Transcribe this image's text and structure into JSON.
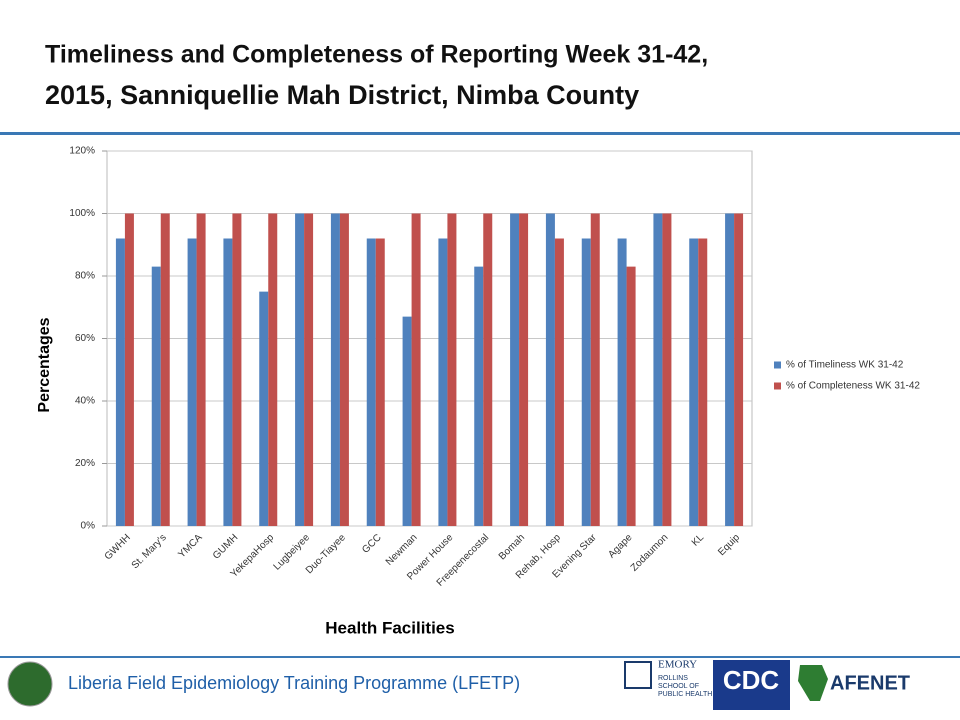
{
  "chart_data": {
    "type": "bar",
    "title_lines": [
      "Timeliness and Completeness of Reporting Week 31-42,",
      "2015, Sanniquellie Mah District, Nimba County"
    ],
    "x_label": "Health Facilities",
    "y_label": "Percentages",
    "categories": [
      "GWHH",
      "St. Mary's",
      "YMCA",
      "GUMH",
      "YekepaHosp",
      "Lugbeiyee",
      "Duo-Tiayee",
      "GCC",
      "Newman",
      "Power House",
      "Freepenecostal",
      "Bomah",
      "Rehab, Hosp",
      "Evening Star",
      "Agape",
      "Zodaumon",
      "KL",
      "Equip"
    ],
    "series": [
      {
        "name": "% of Timeliness WK 31-42",
        "color": "#4f81bd",
        "values": [
          92,
          83,
          92,
          92,
          75,
          100,
          100,
          92,
          67,
          92,
          83,
          100,
          100,
          92,
          92,
          100,
          92,
          100
        ]
      },
      {
        "name": "% of Completeness WK 31-42",
        "color": "#c0504d",
        "values": [
          100,
          100,
          100,
          100,
          100,
          100,
          100,
          92,
          100,
          100,
          100,
          100,
          92,
          100,
          83,
          100,
          92,
          100
        ]
      }
    ],
    "ylim": [
      0,
      120
    ],
    "yticks": [
      {
        "value": 0,
        "label": "0%"
      },
      {
        "value": 20,
        "label": "20%"
      },
      {
        "value": 40,
        "label": "40%"
      },
      {
        "value": 60,
        "label": "60%"
      },
      {
        "value": 80,
        "label": "80%"
      },
      {
        "value": 100,
        "label": "100%"
      },
      {
        "value": 120,
        "label": "120%"
      }
    ],
    "grid": true,
    "legend": "right"
  },
  "footer": {
    "text": "Liberia Field Epidemiology Training Programme (LFETP)",
    "logos": [
      "EMORY",
      "ROLLINS SCHOOL OF PUBLIC HEALTH",
      "CDC",
      "AFENET"
    ]
  }
}
